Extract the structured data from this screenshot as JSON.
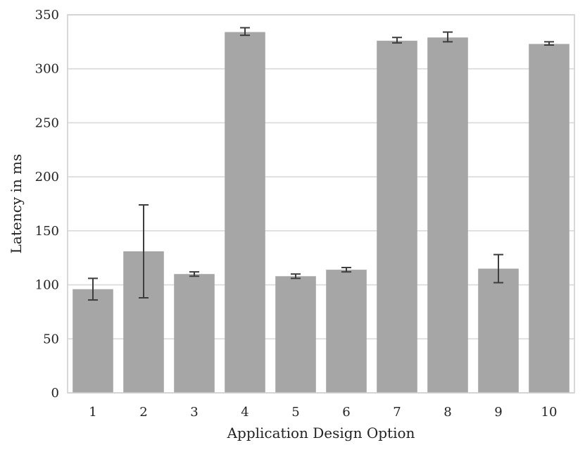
{
  "chart_data": {
    "type": "bar",
    "title": "",
    "xlabel": "Application Design Option",
    "ylabel": "Latency in ms",
    "categories": [
      "1",
      "2",
      "3",
      "4",
      "5",
      "6",
      "7",
      "8",
      "9",
      "10"
    ],
    "values": [
      96,
      131,
      110,
      334,
      108,
      114,
      326,
      329,
      115,
      323
    ],
    "error_low": [
      86,
      88,
      108,
      331,
      106,
      112,
      324,
      325,
      102,
      322
    ],
    "error_high": [
      106,
      174,
      112,
      338,
      110,
      116,
      329,
      334,
      128,
      325
    ],
    "ylim": [
      0,
      350
    ],
    "yticks": [
      "0",
      "50",
      "100",
      "150",
      "200",
      "250",
      "300",
      "350"
    ],
    "grid": true,
    "legend": false
  },
  "colors": {
    "bar": "#a6a6a6",
    "error_bar": "#3d3d3d",
    "grid": "#d9d9d9",
    "frame": "#cfcfcf",
    "text": "#222222"
  }
}
